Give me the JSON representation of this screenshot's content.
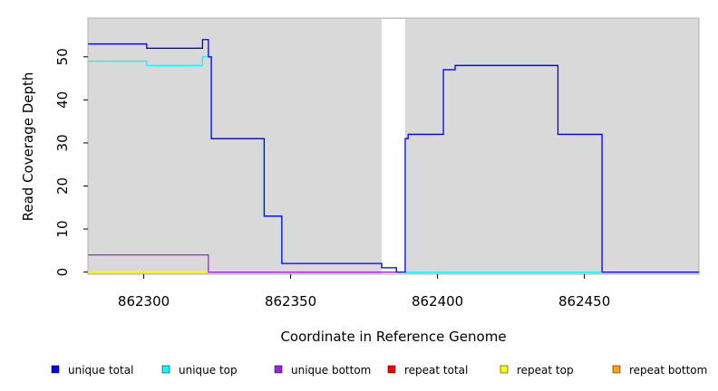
{
  "chart_data": {
    "type": "line",
    "title": "",
    "xlabel": "Coordinate in Reference Genome",
    "ylabel": "Read Coverage Depth",
    "xlim": [
      862281,
      862489
    ],
    "ylim": [
      -0.5,
      59
    ],
    "x_ticks": [
      862300,
      862350,
      862400,
      862450
    ],
    "y_ticks": [
      0,
      10,
      20,
      30,
      40,
      50
    ],
    "grid": false,
    "background": "#d9d9d9",
    "gaps": [
      {
        "start": 862381,
        "end": 862389
      }
    ],
    "legend_position": "bottom",
    "series": [
      {
        "name": "unique total",
        "color": "#0000ff",
        "points": [
          [
            862281,
            53
          ],
          [
            862301,
            53
          ],
          [
            862301,
            52
          ],
          [
            862320,
            52
          ],
          [
            862320,
            54
          ],
          [
            862322,
            54
          ],
          [
            862322,
            50
          ],
          [
            862323,
            50
          ],
          [
            862323,
            31
          ],
          [
            862341,
            31
          ],
          [
            862341,
            13
          ],
          [
            862347,
            13
          ],
          [
            862347,
            2
          ],
          [
            862381,
            2
          ],
          [
            862381,
            1
          ],
          [
            862386,
            1
          ],
          [
            862386,
            0
          ],
          [
            862389,
            0
          ],
          [
            862389,
            31
          ],
          [
            862390,
            31
          ],
          [
            862390,
            32
          ],
          [
            862402,
            32
          ],
          [
            862402,
            47
          ],
          [
            862406,
            47
          ],
          [
            862406,
            48
          ],
          [
            862441,
            48
          ],
          [
            862441,
            32
          ],
          [
            862456,
            32
          ],
          [
            862456,
            0
          ],
          [
            862489,
            0
          ]
        ]
      },
      {
        "name": "unique top",
        "color": "#00ffff",
        "points": [
          [
            862281,
            49
          ],
          [
            862301,
            49
          ],
          [
            862301,
            48
          ],
          [
            862320,
            48
          ],
          [
            862320,
            50
          ],
          [
            862323,
            50
          ],
          [
            862323,
            31
          ],
          [
            862341,
            31
          ],
          [
            862341,
            13
          ],
          [
            862347,
            13
          ],
          [
            862347,
            2
          ],
          [
            862381,
            2
          ],
          [
            862381,
            1
          ],
          [
            862386,
            1
          ],
          [
            862386,
            0
          ],
          [
            862489,
            0
          ]
        ]
      },
      {
        "name": "unique bottom",
        "color": "#a020f0",
        "points": [
          [
            862281,
            4
          ],
          [
            862322,
            4
          ],
          [
            862322,
            0
          ],
          [
            862456,
            0
          ]
        ]
      },
      {
        "name": "repeat total",
        "color": "#ff0000",
        "points": [
          [
            862322,
            0
          ],
          [
            862386,
            0
          ]
        ]
      },
      {
        "name": "repeat top",
        "color": "#ffff00",
        "points": [
          [
            862281,
            0
          ],
          [
            862322,
            0
          ]
        ]
      },
      {
        "name": "repeat bottom",
        "color": "#ffa500",
        "points": [
          [
            862281,
            0
          ],
          [
            862322,
            0
          ]
        ]
      }
    ]
  }
}
